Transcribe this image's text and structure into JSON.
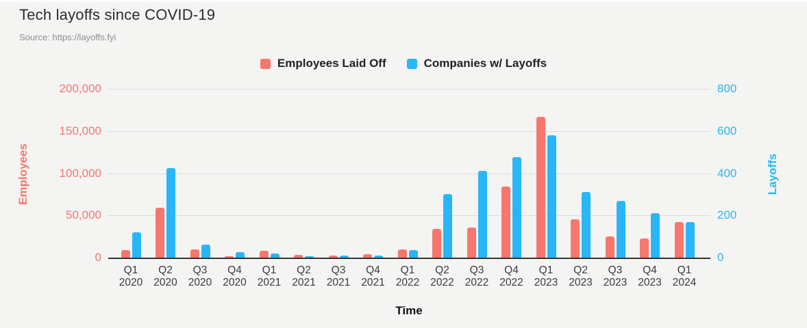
{
  "header": {
    "title": "Tech layoffs since COVID-19",
    "source": "Source: https://layoffs.fyi"
  },
  "legend": [
    {
      "label": "Employees Laid Off",
      "color": "#F8766D"
    },
    {
      "label": "Companies w/ Layoffs",
      "color": "#29B6F6"
    }
  ],
  "chart_data": {
    "type": "bar",
    "categories": [
      "Q1 2020",
      "Q2 2020",
      "Q3 2020",
      "Q4 2020",
      "Q1 2021",
      "Q2 2021",
      "Q3 2021",
      "Q4 2021",
      "Q1 2022",
      "Q2 2022",
      "Q3 2022",
      "Q4 2022",
      "Q1 2023",
      "Q2 2023",
      "Q3 2023",
      "Q4 2023",
      "Q1 2024"
    ],
    "series": [
      {
        "name": "Employees Laid Off",
        "axis": "left",
        "color": "#F8766D",
        "values": [
          9000,
          59000,
          10000,
          2000,
          8000,
          3000,
          2500,
          4000,
          10000,
          34000,
          36000,
          84000,
          167000,
          45000,
          25000,
          23000,
          42000
        ]
      },
      {
        "name": "Companies w/ Layoffs",
        "axis": "right",
        "color": "#29B6F6",
        "values": [
          120,
          425,
          60,
          25,
          20,
          5,
          10,
          10,
          35,
          300,
          410,
          475,
          580,
          310,
          270,
          210,
          170
        ]
      }
    ],
    "left_axis": {
      "title": "Employees",
      "tick_labels": [
        "0",
        "50,000",
        "100,000",
        "150,000",
        "200,000"
      ],
      "min": 0,
      "max": 200000,
      "color": "#F8766D"
    },
    "right_axis": {
      "title": "Layoffs",
      "tick_labels": [
        "0",
        "200",
        "400",
        "600",
        "800"
      ],
      "min": 0,
      "max": 800,
      "color": "#29B6F6"
    },
    "x_axis": {
      "title": "Time"
    },
    "title": "Tech layoffs since COVID-19",
    "grid": true,
    "legend_position": "top"
  },
  "colors": {
    "background": "#f4f4f3",
    "gridline": "#dadada",
    "baseline": "#333333",
    "title_text": "#2b2b2b",
    "source_text": "#8d8d8d",
    "x_label_text": "#3a3a3a"
  }
}
